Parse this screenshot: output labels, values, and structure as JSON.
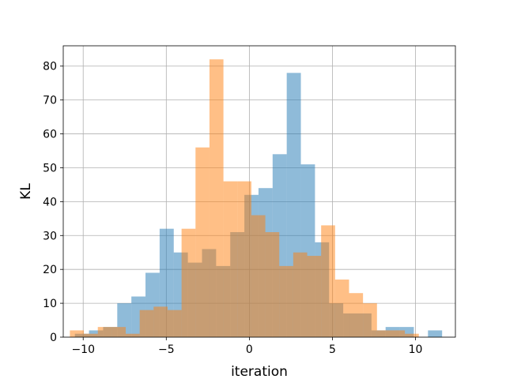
{
  "chart_data": {
    "type": "bar",
    "subtype": "overlapping-histogram",
    "title": "",
    "xlabel": "iteration",
    "ylabel": "KL",
    "xlim": [
      -11.2,
      12.4
    ],
    "ylim": [
      0,
      86
    ],
    "xticks": [
      -10,
      -5,
      0,
      5,
      10
    ],
    "yticks": [
      0,
      10,
      20,
      30,
      40,
      50,
      60,
      70,
      80
    ],
    "grid": true,
    "legend": "none",
    "series": [
      {
        "color": "#1f77b4",
        "alpha": 0.5,
        "bin_edges": [
          -10.5,
          -9.65,
          -8.8,
          -7.95,
          -7.1,
          -6.25,
          -5.4,
          -4.55,
          -3.7,
          -2.85,
          -2.0,
          -1.15,
          -0.3,
          0.55,
          1.4,
          2.25,
          3.1,
          3.95,
          4.8,
          5.65,
          6.5,
          7.35,
          8.2,
          9.05,
          9.9,
          10.75,
          11.6
        ],
        "values": [
          1,
          2,
          3,
          10,
          12,
          19,
          32,
          25,
          22,
          26,
          21,
          31,
          42,
          44,
          54,
          78,
          51,
          28,
          10,
          7,
          7,
          2,
          3,
          3,
          0,
          2
        ]
      },
      {
        "color": "#ff7f0e",
        "alpha": 0.5,
        "bin_edges": [
          -10.8,
          -9.96,
          -9.12,
          -8.28,
          -7.44,
          -6.6,
          -5.76,
          -4.92,
          -4.08,
          -3.24,
          -2.4,
          -1.56,
          -0.72,
          0.12,
          0.96,
          1.8,
          2.64,
          3.48,
          4.32,
          5.16,
          6.0,
          6.84,
          7.68,
          8.52,
          9.36,
          10.2
        ],
        "values": [
          2,
          1,
          3,
          3,
          1,
          8,
          9,
          8,
          32,
          56,
          82,
          46,
          46,
          36,
          31,
          21,
          25,
          24,
          33,
          17,
          13,
          10,
          2,
          2,
          1
        ]
      }
    ]
  }
}
